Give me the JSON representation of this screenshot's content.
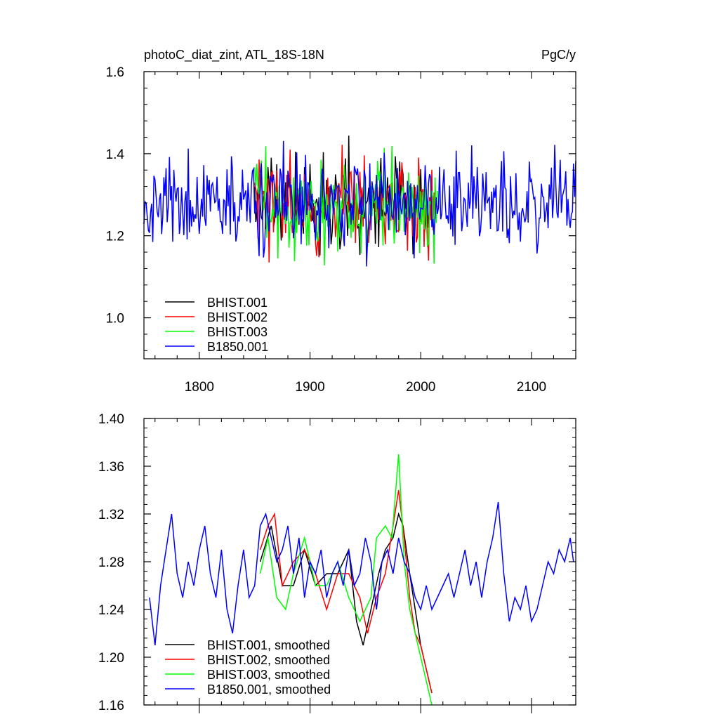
{
  "chart_data": [
    {
      "type": "line",
      "title": "photoC_diat_zint, ATL_18S-18N",
      "units": "PgC/y",
      "xlim": [
        1750,
        2140
      ],
      "ylim": [
        0.9,
        1.6
      ],
      "xticks": [
        1800,
        1900,
        2000,
        2100
      ],
      "yticks": [
        1.0,
        1.2,
        1.4,
        1.6
      ],
      "ytick_labels": [
        "1.0",
        "1.2",
        "1.4",
        "1.6"
      ],
      "legend_position": "bottom-left",
      "grid": false,
      "series": [
        {
          "name": "BHIST.001",
          "color": "#000000",
          "x_start": 1850,
          "x_end": 2010,
          "mean": 1.28,
          "amplitude": 0.17,
          "seed": 11
        },
        {
          "name": "BHIST.002",
          "color": "#ff0000",
          "x_start": 1850,
          "x_end": 2015,
          "mean": 1.28,
          "amplitude": 0.18,
          "seed": 23
        },
        {
          "name": "BHIST.003",
          "color": "#00ff00",
          "x_start": 1850,
          "x_end": 2015,
          "mean": 1.27,
          "amplitude": 0.18,
          "seed": 37
        },
        {
          "name": "B1850.001",
          "color": "#0000ff",
          "x_start": 1750,
          "x_end": 2140,
          "mean": 1.28,
          "amplitude": 0.17,
          "seed": 53
        }
      ]
    },
    {
      "type": "line",
      "title": "",
      "xlim": [
        1750,
        2140
      ],
      "ylim": [
        1.16,
        1.4
      ],
      "xticks": [
        1800,
        1900,
        2000,
        2100
      ],
      "yticks": [
        1.16,
        1.2,
        1.24,
        1.28,
        1.32,
        1.36,
        1.4
      ],
      "ytick_labels": [
        "1.16",
        "1.20",
        "1.24",
        "1.28",
        "1.32",
        "1.36",
        "1.40"
      ],
      "legend_position": "bottom-left",
      "grid": false,
      "series": [
        {
          "name": "BHIST.001, smoothed",
          "color": "#000000",
          "x": [
            1855,
            1865,
            1875,
            1885,
            1895,
            1905,
            1915,
            1925,
            1935,
            1942,
            1948,
            1955,
            1962,
            1968,
            1975,
            1980,
            1984,
            1990,
            1995,
            2000,
            2005,
            2010
          ],
          "y": [
            1.28,
            1.31,
            1.26,
            1.26,
            1.29,
            1.26,
            1.27,
            1.27,
            1.29,
            1.23,
            1.21,
            1.24,
            1.27,
            1.29,
            1.3,
            1.32,
            1.31,
            1.27,
            1.24,
            1.21,
            1.19,
            1.17
          ]
        },
        {
          "name": "BHIST.002, smoothed",
          "color": "#ff0000",
          "x": [
            1855,
            1862,
            1868,
            1875,
            1885,
            1895,
            1905,
            1915,
            1925,
            1935,
            1945,
            1952,
            1960,
            1968,
            1975,
            1980,
            1985,
            1990,
            1995,
            2000,
            2005,
            2010
          ],
          "y": [
            1.29,
            1.31,
            1.32,
            1.26,
            1.28,
            1.29,
            1.27,
            1.24,
            1.27,
            1.27,
            1.25,
            1.22,
            1.25,
            1.27,
            1.31,
            1.34,
            1.3,
            1.25,
            1.22,
            1.21,
            1.19,
            1.17
          ]
        },
        {
          "name": "BHIST.003, smoothed",
          "color": "#00ff00",
          "x": [
            1855,
            1862,
            1870,
            1878,
            1885,
            1895,
            1905,
            1915,
            1925,
            1935,
            1945,
            1955,
            1960,
            1968,
            1974,
            1980,
            1985,
            1990,
            1995,
            2000,
            2005,
            2010
          ],
          "y": [
            1.27,
            1.3,
            1.25,
            1.24,
            1.27,
            1.3,
            1.26,
            1.26,
            1.28,
            1.25,
            1.23,
            1.25,
            1.3,
            1.31,
            1.3,
            1.37,
            1.28,
            1.24,
            1.22,
            1.2,
            1.18,
            1.16
          ]
        },
        {
          "name": "B1850.001, smoothed",
          "color": "#0000ff",
          "x": [
            1755,
            1760,
            1765,
            1770,
            1775,
            1780,
            1785,
            1790,
            1795,
            1800,
            1805,
            1810,
            1815,
            1820,
            1825,
            1830,
            1835,
            1840,
            1845,
            1850,
            1855,
            1860,
            1865,
            1870,
            1875,
            1880,
            1885,
            1890,
            1895,
            1900,
            1905,
            1910,
            1915,
            1920,
            1925,
            1930,
            1935,
            1940,
            1945,
            1950,
            1955,
            1960,
            1965,
            1970,
            1975,
            1980,
            1985,
            1990,
            1995,
            2000,
            2005,
            2010,
            2015,
            2020,
            2025,
            2030,
            2035,
            2040,
            2045,
            2050,
            2055,
            2060,
            2065,
            2070,
            2075,
            2080,
            2085,
            2090,
            2095,
            2100,
            2105,
            2110,
            2115,
            2120,
            2125,
            2130,
            2135,
            2138
          ],
          "y": [
            1.25,
            1.21,
            1.26,
            1.29,
            1.32,
            1.27,
            1.25,
            1.28,
            1.26,
            1.29,
            1.31,
            1.27,
            1.25,
            1.29,
            1.24,
            1.22,
            1.26,
            1.29,
            1.25,
            1.26,
            1.31,
            1.32,
            1.3,
            1.28,
            1.29,
            1.31,
            1.27,
            1.3,
            1.25,
            1.28,
            1.27,
            1.29,
            1.25,
            1.27,
            1.28,
            1.26,
            1.29,
            1.26,
            1.27,
            1.3,
            1.28,
            1.24,
            1.28,
            1.29,
            1.27,
            1.3,
            1.28,
            1.27,
            1.25,
            1.24,
            1.26,
            1.24,
            1.25,
            1.26,
            1.27,
            1.25,
            1.27,
            1.29,
            1.26,
            1.28,
            1.25,
            1.28,
            1.3,
            1.33,
            1.27,
            1.23,
            1.25,
            1.24,
            1.26,
            1.23,
            1.24,
            1.26,
            1.28,
            1.27,
            1.29,
            1.28,
            1.3,
            1.28
          ]
        }
      ]
    }
  ]
}
